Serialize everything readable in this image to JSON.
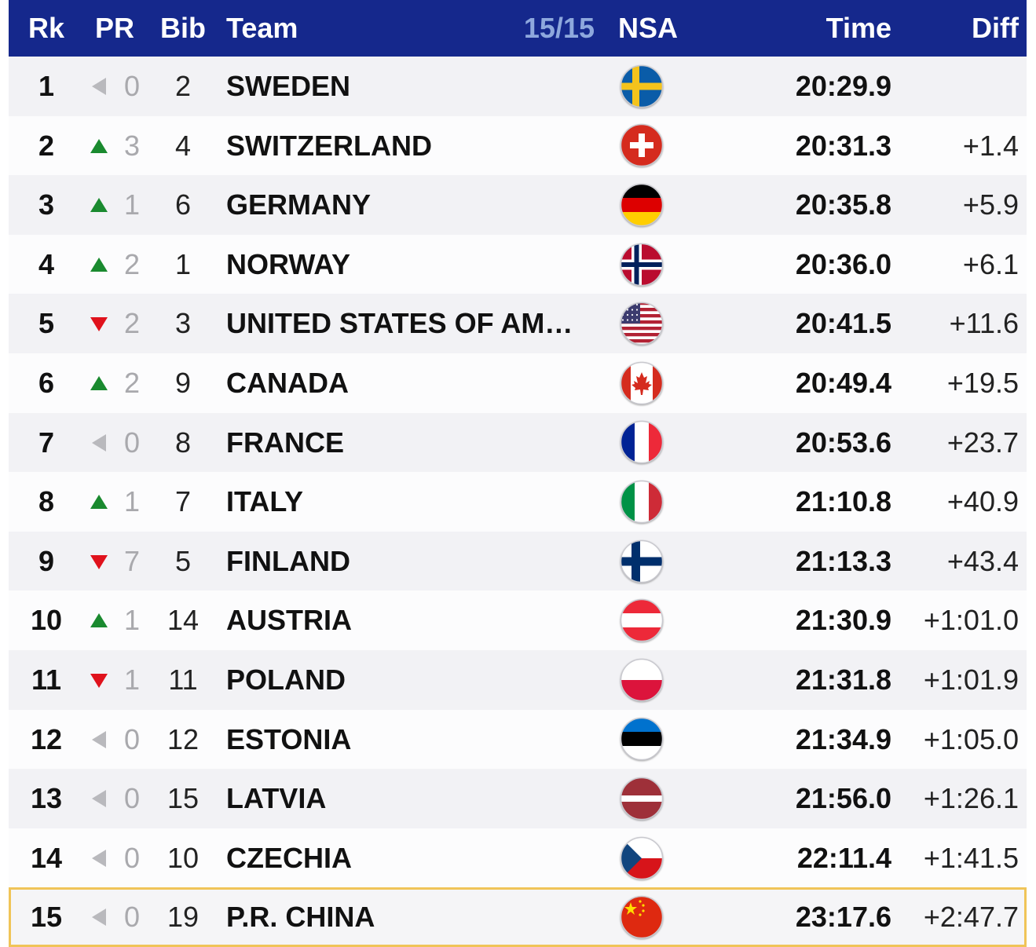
{
  "header": {
    "rk": "Rk",
    "pr": "PR",
    "bib": "Bib",
    "team": "Team",
    "count": "15/15",
    "nsa": "NSA",
    "time": "Time",
    "diff": "Diff"
  },
  "colors": {
    "header_bg": "#15288c",
    "rise": "#1a8a2f",
    "fall": "#e0121c",
    "same": "#b9b9bd",
    "highlight_border": "#f0c458"
  },
  "rows": [
    {
      "rk": "1",
      "trend": "same",
      "pr": "0",
      "bib": "2",
      "team": "SWEDEN",
      "flag": "sweden-flag-icon",
      "time": "20:29.9",
      "diff": ""
    },
    {
      "rk": "2",
      "trend": "up",
      "pr": "3",
      "bib": "4",
      "team": "SWITZERLAND",
      "flag": "switzerland-flag-icon",
      "time": "20:31.3",
      "diff": "+1.4"
    },
    {
      "rk": "3",
      "trend": "up",
      "pr": "1",
      "bib": "6",
      "team": "GERMANY",
      "flag": "germany-flag-icon",
      "time": "20:35.8",
      "diff": "+5.9"
    },
    {
      "rk": "4",
      "trend": "up",
      "pr": "2",
      "bib": "1",
      "team": "NORWAY",
      "flag": "norway-flag-icon",
      "time": "20:36.0",
      "diff": "+6.1"
    },
    {
      "rk": "5",
      "trend": "down",
      "pr": "2",
      "bib": "3",
      "team": "UNITED STATES OF AM…",
      "flag": "usa-flag-icon",
      "time": "20:41.5",
      "diff": "+11.6"
    },
    {
      "rk": "6",
      "trend": "up",
      "pr": "2",
      "bib": "9",
      "team": "CANADA",
      "flag": "canada-flag-icon",
      "time": "20:49.4",
      "diff": "+19.5"
    },
    {
      "rk": "7",
      "trend": "same",
      "pr": "0",
      "bib": "8",
      "team": "FRANCE",
      "flag": "france-flag-icon",
      "time": "20:53.6",
      "diff": "+23.7"
    },
    {
      "rk": "8",
      "trend": "up",
      "pr": "1",
      "bib": "7",
      "team": "ITALY",
      "flag": "italy-flag-icon",
      "time": "21:10.8",
      "diff": "+40.9"
    },
    {
      "rk": "9",
      "trend": "down",
      "pr": "7",
      "bib": "5",
      "team": "FINLAND",
      "flag": "finland-flag-icon",
      "time": "21:13.3",
      "diff": "+43.4"
    },
    {
      "rk": "10",
      "trend": "up",
      "pr": "1",
      "bib": "14",
      "team": "AUSTRIA",
      "flag": "austria-flag-icon",
      "time": "21:30.9",
      "diff": "+1:01.0"
    },
    {
      "rk": "11",
      "trend": "down",
      "pr": "1",
      "bib": "11",
      "team": "POLAND",
      "flag": "poland-flag-icon",
      "time": "21:31.8",
      "diff": "+1:01.9"
    },
    {
      "rk": "12",
      "trend": "same",
      "pr": "0",
      "bib": "12",
      "team": "ESTONIA",
      "flag": "estonia-flag-icon",
      "time": "21:34.9",
      "diff": "+1:05.0"
    },
    {
      "rk": "13",
      "trend": "same",
      "pr": "0",
      "bib": "15",
      "team": "LATVIA",
      "flag": "latvia-flag-icon",
      "time": "21:56.0",
      "diff": "+1:26.1"
    },
    {
      "rk": "14",
      "trend": "same",
      "pr": "0",
      "bib": "10",
      "team": "CZECHIA",
      "flag": "czechia-flag-icon",
      "time": "22:11.4",
      "diff": "+1:41.5"
    },
    {
      "rk": "15",
      "trend": "same",
      "pr": "0",
      "bib": "19",
      "team": "P.R. CHINA",
      "flag": "china-flag-icon",
      "time": "23:17.6",
      "diff": "+2:47.7",
      "highlighted": true
    }
  ]
}
